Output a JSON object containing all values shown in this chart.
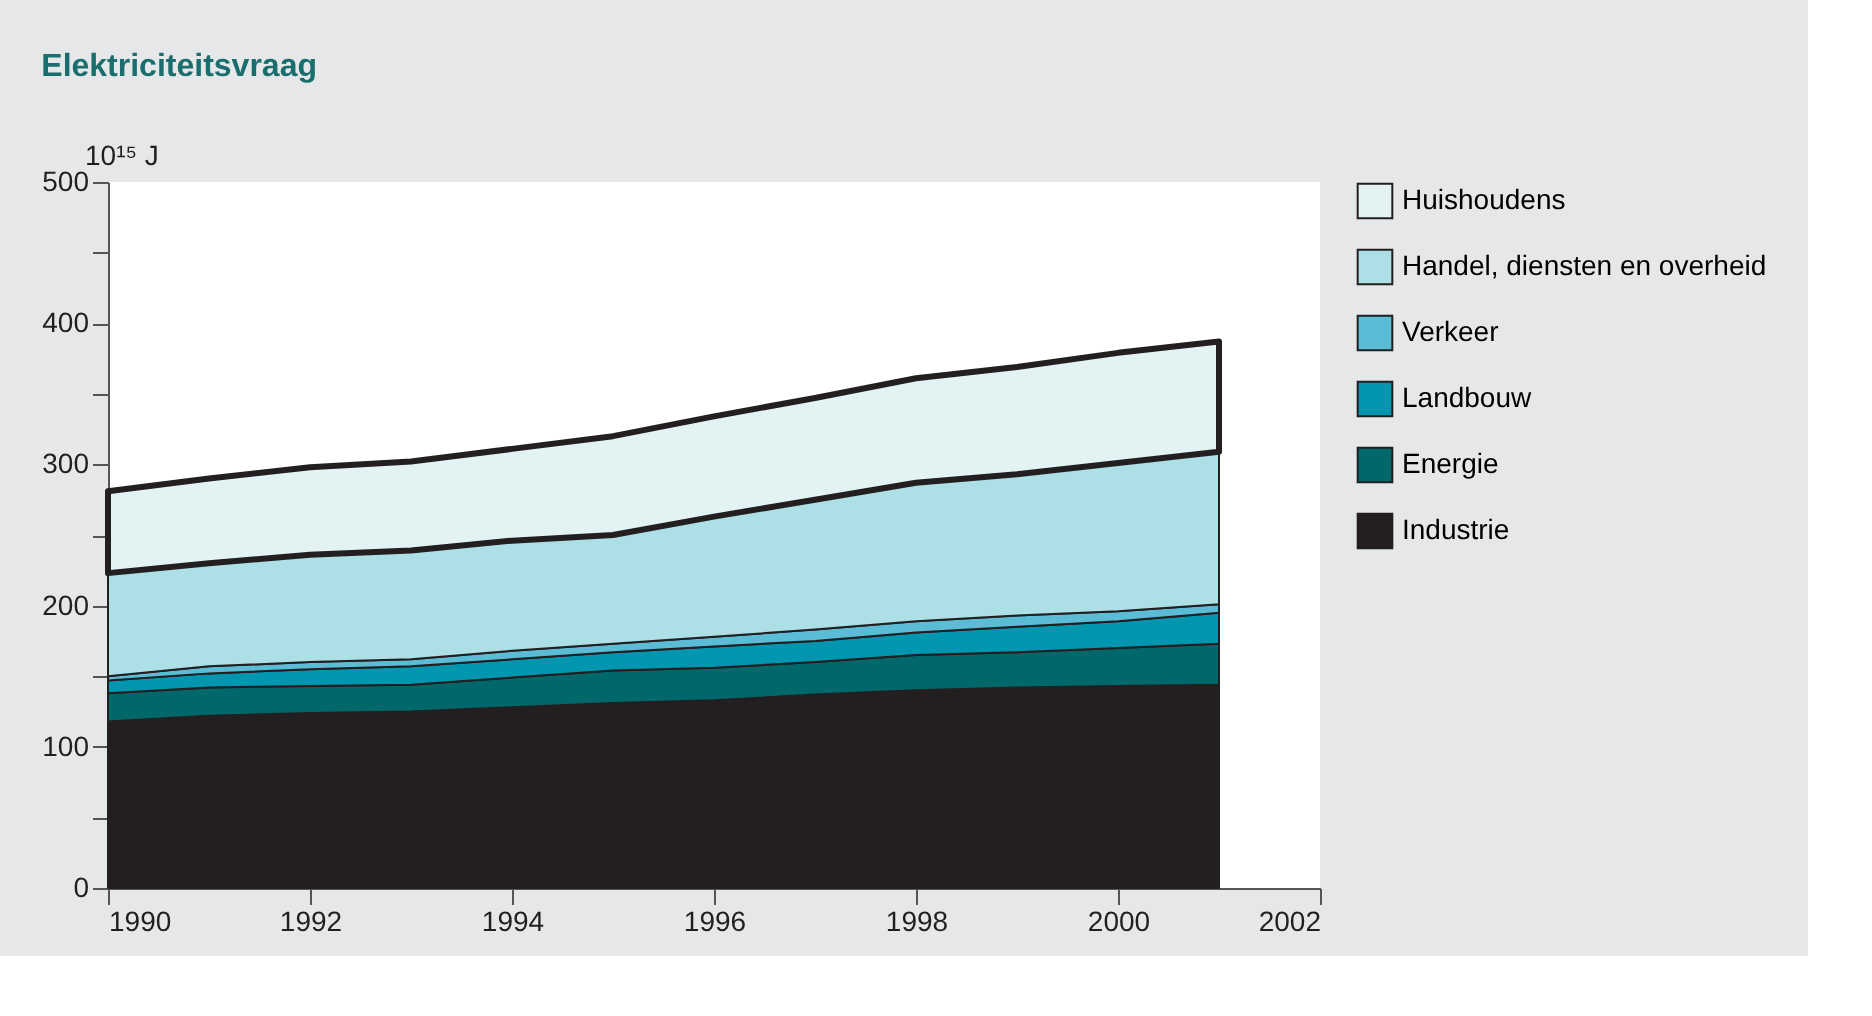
{
  "chart_data": {
    "type": "area",
    "stacked": true,
    "title": "Elektriciteitsvraag",
    "ylabel": "10¹⁵ J",
    "x": [
      1990,
      1991,
      1992,
      1993,
      1994,
      1995,
      1996,
      1997,
      1998,
      1999,
      2000,
      2001
    ],
    "series": [
      {
        "name": "Industrie",
        "color": "#231f20",
        "values": [
          118,
          122,
          124,
          125,
          128,
          131,
          133,
          137,
          140,
          142,
          143,
          144
        ]
      },
      {
        "name": "Energie",
        "color": "#00686b",
        "values": [
          20,
          20,
          19,
          19,
          21,
          23,
          23,
          23,
          25,
          25,
          27,
          29
        ]
      },
      {
        "name": "Landbouw",
        "color": "#0096b0",
        "values": [
          9,
          10,
          12,
          13,
          13,
          13,
          15,
          15,
          16,
          18,
          19,
          22
        ]
      },
      {
        "name": "Verkeer",
        "color": "#5bbcd6",
        "values": [
          3,
          5,
          5,
          5,
          6,
          6,
          7,
          8,
          8,
          8,
          7,
          6
        ]
      },
      {
        "name": "Handel, diensten en overheid",
        "color": "#acdfe6",
        "values": [
          73,
          73,
          76,
          77,
          78,
          77,
          85,
          92,
          98,
          100,
          105,
          108
        ]
      },
      {
        "name": "Huishoudens",
        "color": "#e3f3f3",
        "values": [
          58,
          60,
          62,
          63,
          65,
          70,
          71,
          72,
          74,
          76,
          78,
          78
        ]
      }
    ],
    "xlim": [
      1990,
      2002
    ],
    "xticks": [
      1990,
      1992,
      1994,
      1996,
      1998,
      2000,
      2002
    ],
    "ylim": [
      0,
      500
    ],
    "yticks": [
      0,
      {
        "value": 50,
        "label": null
      },
      100,
      {
        "value": 150,
        "label": null
      },
      200,
      {
        "value": 250,
        "label": null
      },
      300,
      {
        "value": 350,
        "label": null
      },
      400,
      {
        "value": 450,
        "label": null
      },
      500
    ],
    "grid": false,
    "legend": "top right"
  }
}
